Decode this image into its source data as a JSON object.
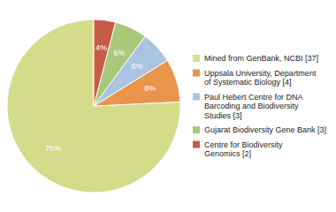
{
  "chart_data": {
    "type": "pie",
    "categories": [
      "Mined from GenBank, NCBI [37]",
      "Uppsala University, Department\nof Systematic Biology [4]",
      "Paul Hebert Centre for DNA\nBarcoding and Biodiversity\nStudies [3]",
      "Gujarat Biodiversity Gene Bank [3]",
      "Centre for Biodiversity\nGenomics [2]"
    ],
    "values": [
      75,
      8,
      6,
      6,
      4
    ],
    "value_labels": [
      "75%",
      "8%",
      "6%",
      "6%",
      "4%"
    ],
    "colors": [
      "#d4dc8a",
      "#e8944a",
      "#a8c4e0",
      "#a8c87a",
      "#c85a4a"
    ],
    "data_labels": true,
    "legend": "right"
  }
}
